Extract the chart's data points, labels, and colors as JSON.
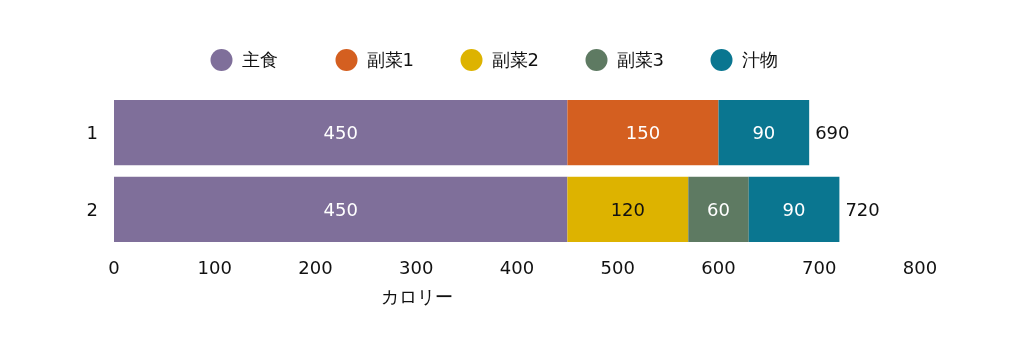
{
  "chart_data": {
    "type": "bar",
    "orientation": "horizontal",
    "stacked": true,
    "categories": [
      "1",
      "2"
    ],
    "series": [
      {
        "name": "主食",
        "color": "#7f6f9a",
        "values": [
          450,
          450
        ]
      },
      {
        "name": "副菜1",
        "color": "#d45f20",
        "values": [
          150,
          null
        ]
      },
      {
        "name": "副菜2",
        "color": "#ddb300",
        "values": [
          null,
          120
        ]
      },
      {
        "name": "副菜3",
        "color": "#5e7a62",
        "values": [
          null,
          60
        ]
      },
      {
        "name": "汁物",
        "color": "#0a7690",
        "values": [
          90,
          90
        ]
      }
    ],
    "xlim": [
      0,
      800
    ],
    "xticks": [
      0,
      100,
      200,
      300,
      400,
      500,
      600,
      700,
      800
    ],
    "xlabel": "カロリー",
    "totals": [
      "690",
      "720"
    ],
    "data_labels": true,
    "legend": "top",
    "grid": false
  }
}
